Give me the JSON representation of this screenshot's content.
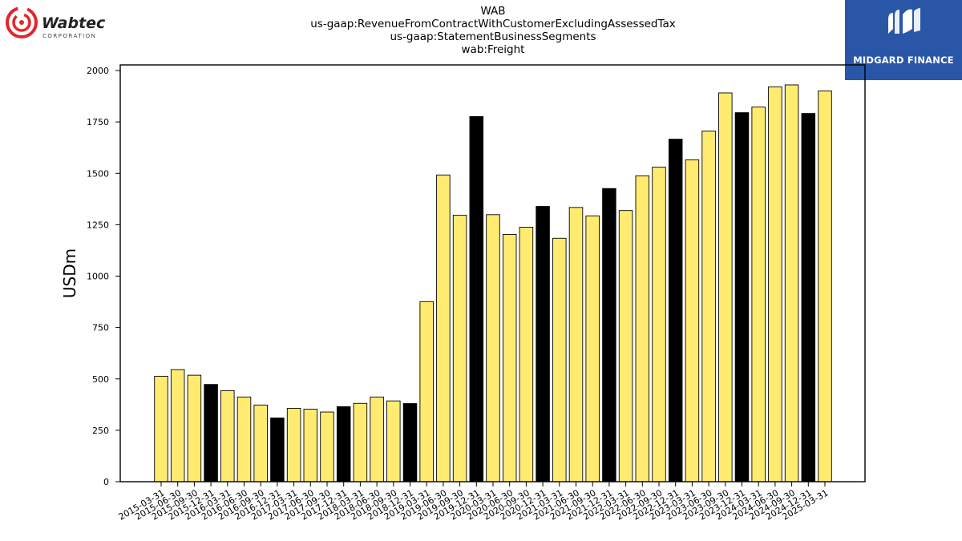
{
  "header": {
    "title_lines": [
      "WAB",
      "us-gaap:RevenueFromContractWithCustomerExcludingAssessedTax",
      "us-gaap:StatementBusinessSegments",
      "wab:Freight"
    ]
  },
  "logos": {
    "left": {
      "name": "Wabtec",
      "subtitle": "CORPORATION",
      "icon": "wabtec-swirl-icon",
      "color": "#e1262d"
    },
    "right": {
      "name": "MIDGARD FINANCE",
      "icon": "midgard-m-icon",
      "background": "#2a56a8"
    }
  },
  "chart_data": {
    "type": "bar",
    "title": "WAB",
    "ylabel": "USDm",
    "ylim": [
      0,
      2000
    ],
    "yticks": [
      0,
      250,
      500,
      750,
      1000,
      1250,
      1500,
      1750,
      2000
    ],
    "colors": {
      "quarter": "#ffeb70",
      "year_end": "#000000",
      "edge": "#000000"
    },
    "categories": [
      "2015-03-31",
      "2015-06-30",
      "2015-09-30",
      "2015-12-31",
      "2016-03-31",
      "2016-06-30",
      "2016-09-30",
      "2016-12-31",
      "2017-03-31",
      "2017-06-30",
      "2017-09-30",
      "2017-12-31",
      "2018-03-31",
      "2018-06-30",
      "2018-09-30",
      "2018-12-31",
      "2019-03-31",
      "2019-06-30",
      "2019-09-30",
      "2019-12-31",
      "2020-03-31",
      "2020-06-30",
      "2020-09-30",
      "2020-12-31",
      "2021-03-31",
      "2021-06-30",
      "2021-09-30",
      "2021-12-31",
      "2022-03-31",
      "2022-06-30",
      "2022-09-30",
      "2022-12-31",
      "2023-03-31",
      "2023-06-30",
      "2023-09-30",
      "2023-12-31",
      "2024-03-31",
      "2024-06-30",
      "2024-09-30",
      "2024-12-31",
      "2025-03-31"
    ],
    "values": [
      513,
      545,
      518,
      473,
      443,
      412,
      373,
      310,
      357,
      353,
      339,
      365,
      381,
      412,
      393,
      380,
      876,
      1492,
      1296,
      1776,
      1299,
      1203,
      1238,
      1339,
      1184,
      1334,
      1293,
      1426,
      1319,
      1488,
      1530,
      1666,
      1566,
      1706,
      1891,
      1795,
      1823,
      1921,
      1930,
      1791,
      1901
    ],
    "year_end": [
      false,
      false,
      false,
      true,
      false,
      false,
      false,
      true,
      false,
      false,
      false,
      true,
      false,
      false,
      false,
      true,
      false,
      false,
      false,
      true,
      false,
      false,
      false,
      true,
      false,
      false,
      false,
      true,
      false,
      false,
      false,
      true,
      false,
      false,
      false,
      true,
      false,
      false,
      false,
      true,
      false
    ]
  }
}
